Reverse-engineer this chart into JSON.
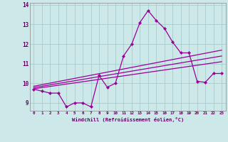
{
  "xlabel": "Windchill (Refroidissement éolien,°C)",
  "background_color": "#cce8e8",
  "grid_color": "#aacccc",
  "line_color": "#990099",
  "x": [
    0,
    1,
    2,
    3,
    4,
    5,
    6,
    7,
    8,
    9,
    10,
    11,
    12,
    13,
    14,
    15,
    16,
    17,
    18,
    19,
    20,
    21,
    22,
    23
  ],
  "y_main": [
    9.7,
    9.6,
    9.5,
    9.5,
    8.8,
    9.0,
    9.0,
    8.8,
    10.4,
    9.8,
    10.0,
    11.4,
    12.0,
    13.1,
    13.7,
    13.2,
    12.8,
    12.1,
    11.55,
    11.55,
    10.1,
    10.05,
    10.5,
    10.5
  ],
  "y_line1": [
    9.72,
    9.78,
    9.84,
    9.9,
    9.96,
    10.02,
    10.08,
    10.14,
    10.2,
    10.26,
    10.32,
    10.38,
    10.44,
    10.5,
    10.56,
    10.62,
    10.68,
    10.74,
    10.8,
    10.86,
    10.92,
    10.98,
    11.04,
    11.1
  ],
  "y_line2": [
    9.78,
    9.85,
    9.92,
    9.99,
    10.06,
    10.13,
    10.2,
    10.27,
    10.34,
    10.41,
    10.48,
    10.55,
    10.62,
    10.69,
    10.76,
    10.83,
    10.9,
    10.97,
    11.04,
    11.11,
    11.18,
    11.25,
    11.32,
    11.39
  ],
  "y_line3": [
    9.85,
    9.93,
    10.01,
    10.09,
    10.17,
    10.25,
    10.33,
    10.41,
    10.49,
    10.57,
    10.65,
    10.73,
    10.81,
    10.89,
    10.97,
    11.05,
    11.13,
    11.21,
    11.29,
    11.37,
    11.45,
    11.53,
    11.61,
    11.69
  ],
  "ylim": [
    8.6,
    14.1
  ],
  "yticks": [
    9,
    10,
    11,
    12,
    13,
    14
  ],
  "xticks": [
    0,
    1,
    2,
    3,
    4,
    5,
    6,
    7,
    8,
    9,
    10,
    11,
    12,
    13,
    14,
    15,
    16,
    17,
    18,
    19,
    20,
    21,
    22,
    23
  ]
}
